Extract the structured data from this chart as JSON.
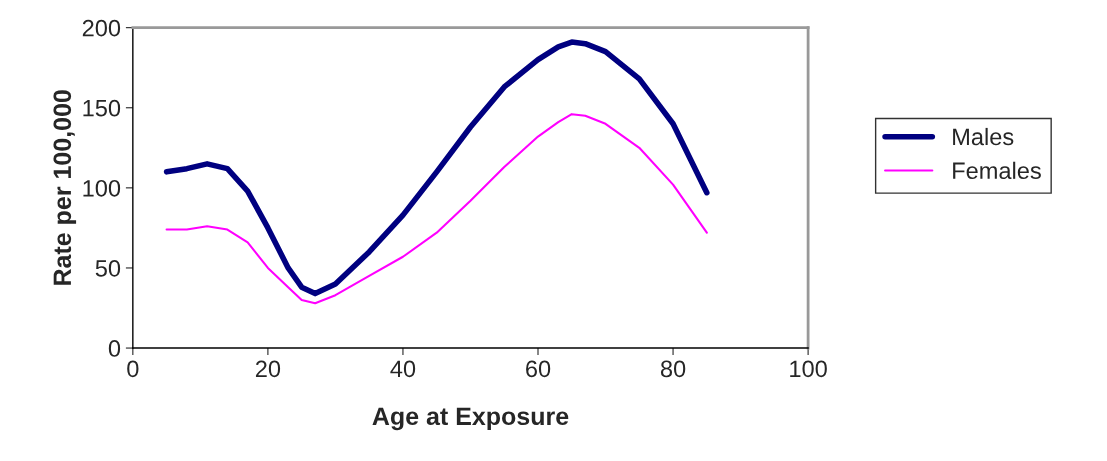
{
  "chart_data": {
    "type": "line",
    "xlabel": "Age at Exposure",
    "ylabel": "Rate per 100,000",
    "x": [
      5,
      8,
      11,
      14,
      17,
      20,
      23,
      25,
      27,
      30,
      35,
      40,
      45,
      50,
      55,
      60,
      63,
      65,
      67,
      70,
      75,
      80,
      85
    ],
    "series": [
      {
        "name": "Males",
        "color": "#000080",
        "values": [
          110,
          112,
          115,
          112,
          98,
          75,
          50,
          38,
          34,
          40,
          60,
          83,
          110,
          138,
          163,
          180,
          188,
          191,
          190,
          185,
          168,
          140,
          97
        ]
      },
      {
        "name": "Females",
        "color": "#ff00ff",
        "values": [
          74,
          74,
          76,
          74,
          66,
          50,
          38,
          30,
          28,
          33,
          45,
          57,
          72,
          92,
          113,
          132,
          141,
          146,
          145,
          140,
          125,
          102,
          72
        ]
      }
    ],
    "xlim": [
      0,
      100
    ],
    "xticks": [
      0,
      20,
      40,
      60,
      80,
      100
    ],
    "ylim": [
      0,
      200
    ],
    "yticks": [
      0,
      50,
      100,
      150,
      200
    ],
    "grid": false,
    "legend": "right",
    "marker": "none",
    "line_style": "solid"
  }
}
